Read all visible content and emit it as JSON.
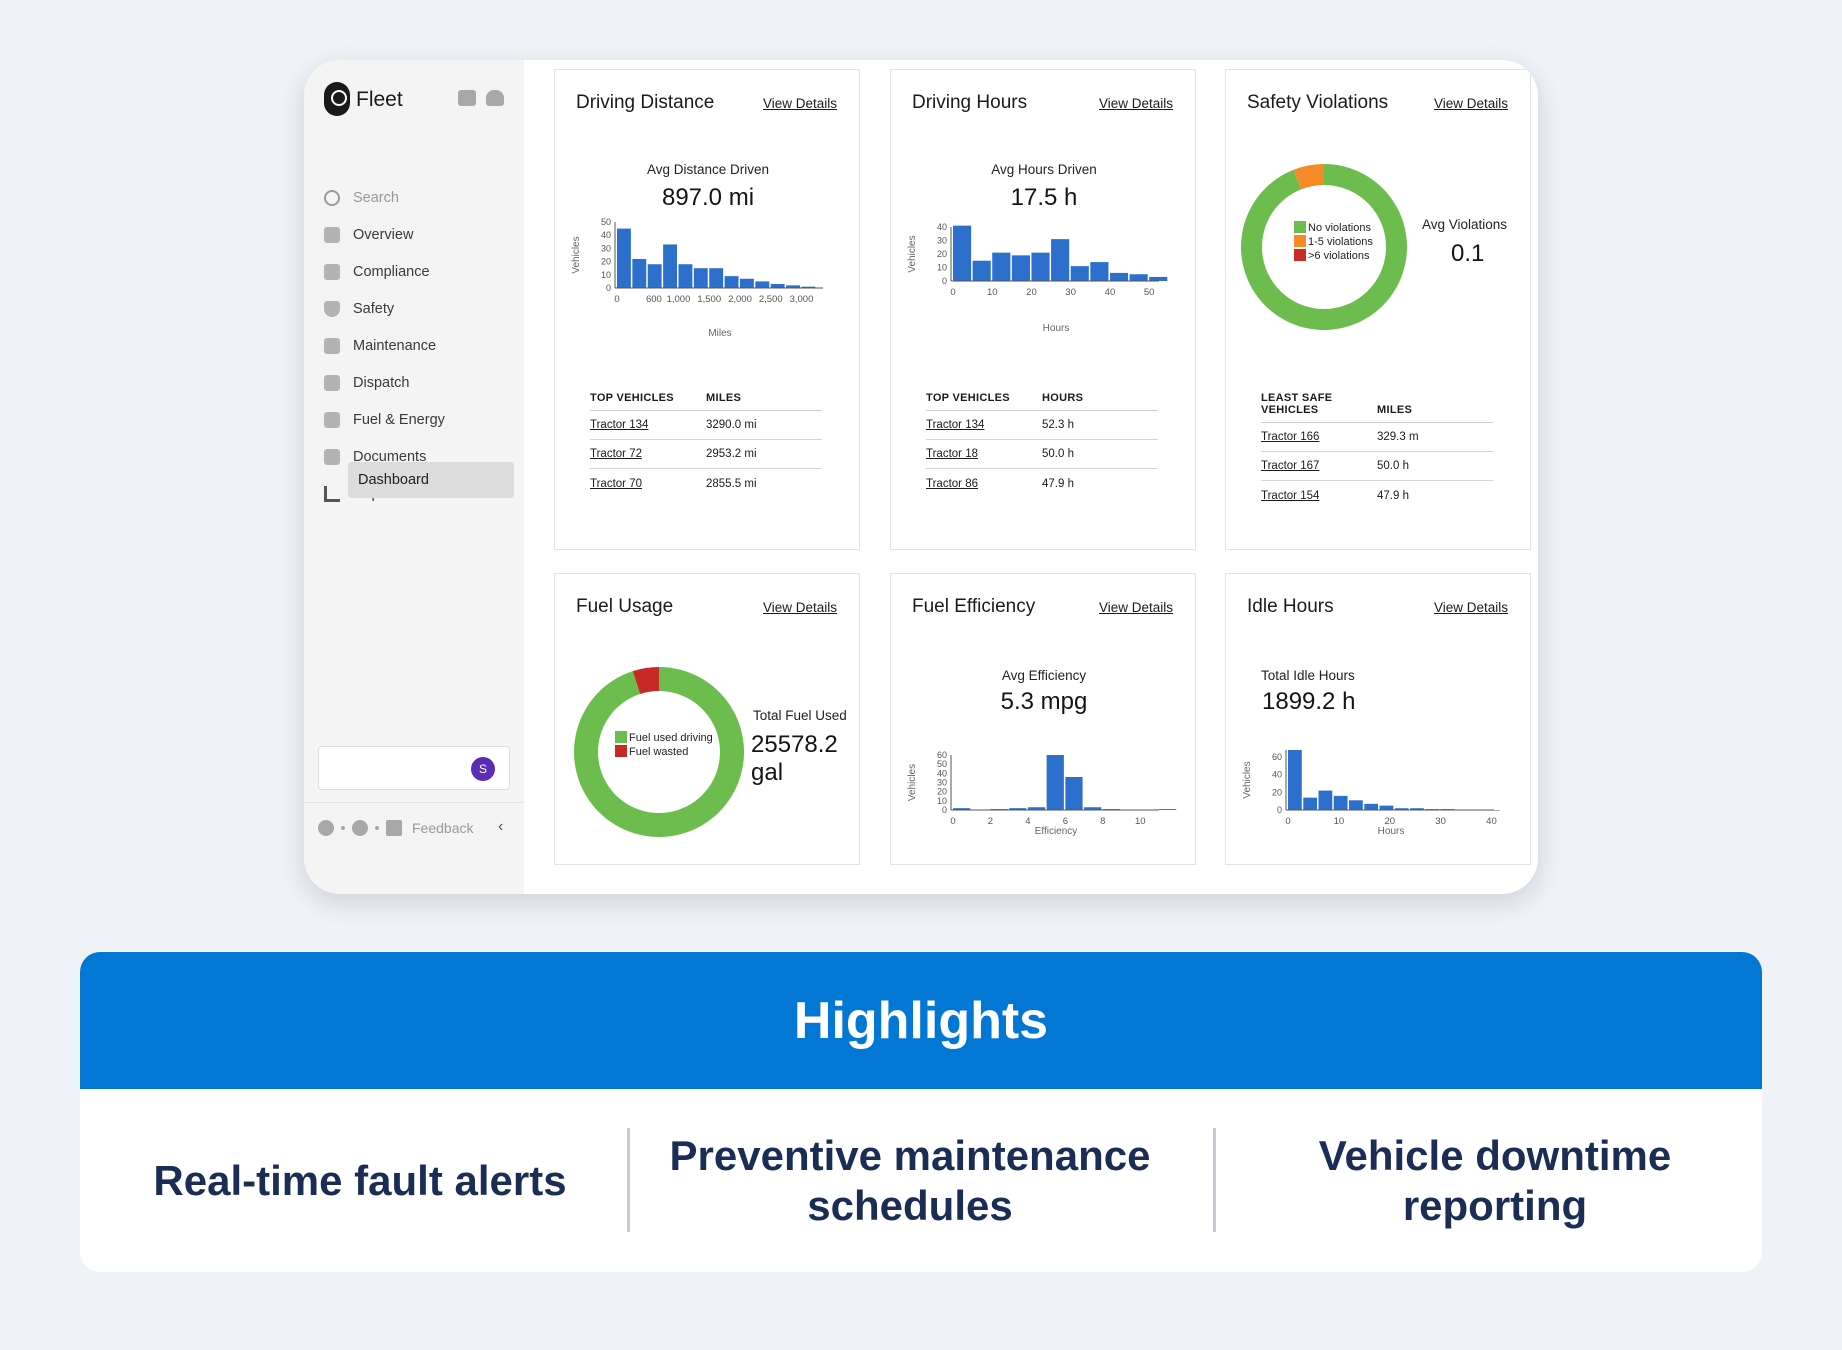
{
  "sidebar": {
    "brand": "Fleet",
    "search_placeholder": "Search",
    "items": [
      "Overview",
      "Compliance",
      "Safety",
      "Maintenance",
      "Dispatch",
      "Fuel & Energy",
      "Documents",
      "Reports"
    ],
    "active_sub": "Dashboard",
    "avatar_initial": "S",
    "feedback": "Feedback"
  },
  "cards": {
    "view_details": "View Details",
    "distance": {
      "title": "Driving Distance",
      "metric_label": "Avg Distance Driven",
      "metric_value": "897.0 mi",
      "col1": "TOP VEHICLES",
      "col2": "MILES",
      "rows": [
        [
          "Tractor 134",
          "3290.0 mi"
        ],
        [
          "Tractor 72",
          "2953.2 mi"
        ],
        [
          "Tractor 70",
          "2855.5 mi"
        ]
      ]
    },
    "hours": {
      "title": "Driving Hours",
      "metric_label": "Avg Hours Driven",
      "metric_value": "17.5 h",
      "col1": "TOP VEHICLES",
      "col2": "HOURS",
      "rows": [
        [
          "Tractor 134",
          "52.3 h"
        ],
        [
          "Tractor 18",
          "50.0 h"
        ],
        [
          "Tractor 86",
          "47.9 h"
        ]
      ]
    },
    "safety": {
      "title": "Safety Violations",
      "metric_label": "Avg Violations",
      "metric_value": "0.1",
      "col1a": "LEAST SAFE",
      "col1b": "VEHICLES",
      "col2": "MILES",
      "rows": [
        [
          "Tractor 166",
          "329.3 m"
        ],
        [
          "Tractor 167",
          "50.0 h"
        ],
        [
          "Tractor 154",
          "47.9 h"
        ]
      ]
    },
    "fuel_usage": {
      "title": "Fuel Usage",
      "metric_label": "Total Fuel Used",
      "metric_value_a": "25578.2",
      "metric_value_b": "gal"
    },
    "fuel_eff": {
      "title": "Fuel Efficiency",
      "metric_label": "Avg Efficiency",
      "metric_value": "5.3 mpg"
    },
    "idle": {
      "title": "Idle Hours",
      "metric_label": "Total Idle Hours",
      "metric_value": "1899.2 h"
    }
  },
  "highlights": {
    "title": "Highlights",
    "items": [
      "Real-time fault alerts",
      "Preventive maintenance schedules",
      "Vehicle downtime reporting"
    ]
  },
  "chart_data": [
    {
      "id": "distance",
      "type": "bar",
      "x": [
        0,
        250,
        500,
        750,
        1000,
        1250,
        1500,
        1750,
        2000,
        2250,
        2500,
        2750,
        3000
      ],
      "values": [
        45,
        22,
        18,
        33,
        18,
        15,
        15,
        9,
        7,
        5,
        3,
        2,
        1
      ],
      "xlabel": "Miles",
      "ylabel": "Vehicles",
      "xticks": [
        {
          "v": 0,
          "t": "0"
        },
        {
          "v": 600,
          "t": "600"
        },
        {
          "v": 1000,
          "t": "1,000"
        },
        {
          "v": 1500,
          "t": "1,500"
        },
        {
          "v": 2000,
          "t": "2,000"
        },
        {
          "v": 2500,
          "t": "2,500"
        },
        {
          "v": 3000,
          "t": "3,000"
        }
      ],
      "yticks": [
        0,
        10,
        20,
        30,
        40,
        50
      ],
      "xlim": [
        0,
        3350
      ],
      "ylim": [
        0,
        50
      ],
      "color": "#2d6fcc"
    },
    {
      "id": "hours",
      "type": "bar",
      "x": [
        0,
        5,
        10,
        15,
        20,
        25,
        30,
        35,
        40,
        45,
        50
      ],
      "values": [
        41,
        15,
        21,
        19,
        21,
        31,
        11,
        14,
        6,
        5,
        3
      ],
      "xlabel": "Hours",
      "ylabel": "Vehicles",
      "xticks": [
        {
          "v": 0,
          "t": "0"
        },
        {
          "v": 10,
          "t": "10"
        },
        {
          "v": 20,
          "t": "20"
        },
        {
          "v": 30,
          "t": "30"
        },
        {
          "v": 40,
          "t": "40"
        },
        {
          "v": 50,
          "t": "50"
        }
      ],
      "yticks": [
        0,
        10,
        20,
        30,
        40
      ],
      "xlim": [
        0,
        52.5
      ],
      "ylim": [
        0,
        40
      ],
      "color": "#2d6fcc"
    },
    {
      "id": "safety_donut",
      "type": "pie",
      "labels": [
        "No violations",
        "1-5 violations",
        ">6 violations"
      ],
      "values": [
        94,
        6,
        0
      ],
      "colors": [
        "#6cbd4e",
        "#f48b27",
        "#cb2a27"
      ]
    },
    {
      "id": "fuel_donut",
      "type": "pie",
      "labels": [
        "Fuel used driving",
        "Fuel wasted"
      ],
      "values": [
        95,
        5
      ],
      "colors": [
        "#6cbd4e",
        "#c52a26"
      ]
    },
    {
      "id": "efficiency",
      "type": "bar",
      "x": [
        0,
        1,
        2,
        3,
        4,
        5,
        6,
        7,
        8,
        9,
        10,
        11
      ],
      "values": [
        2,
        0,
        1,
        2,
        3,
        60,
        36,
        3,
        1,
        0,
        0,
        1
      ],
      "xlabel": "Efficiency",
      "ylabel": "Vehicles",
      "xticks": [
        {
          "v": 0,
          "t": "0"
        },
        {
          "v": 2,
          "t": "2"
        },
        {
          "v": 4,
          "t": "4"
        },
        {
          "v": 6,
          "t": "6"
        },
        {
          "v": 8,
          "t": "8"
        },
        {
          "v": 10,
          "t": "10"
        }
      ],
      "yticks": [
        0,
        10,
        20,
        30,
        40,
        50,
        60
      ],
      "xlim": [
        0,
        11
      ],
      "ylim": [
        0,
        60
      ],
      "color": "#2d6fcc"
    },
    {
      "id": "idle",
      "type": "bar",
      "x": [
        0,
        3,
        6,
        9,
        12,
        15,
        18,
        21,
        24,
        27,
        30,
        33,
        36,
        39
      ],
      "values": [
        68,
        14,
        22,
        16,
        11,
        7,
        5,
        2,
        2,
        1,
        1,
        0,
        0,
        0
      ],
      "xlabel": "Hours",
      "ylabel": "Vehicles",
      "xticks": [
        {
          "v": 0,
          "t": "0"
        },
        {
          "v": 10,
          "t": "10"
        },
        {
          "v": 20,
          "t": "20"
        },
        {
          "v": 30,
          "t": "30"
        },
        {
          "v": 40,
          "t": "40"
        }
      ],
      "yticks": [
        0,
        20,
        40,
        60
      ],
      "xlim": [
        0,
        40.5
      ],
      "ylim": [
        0,
        68
      ],
      "color": "#2d6fcc"
    }
  ]
}
